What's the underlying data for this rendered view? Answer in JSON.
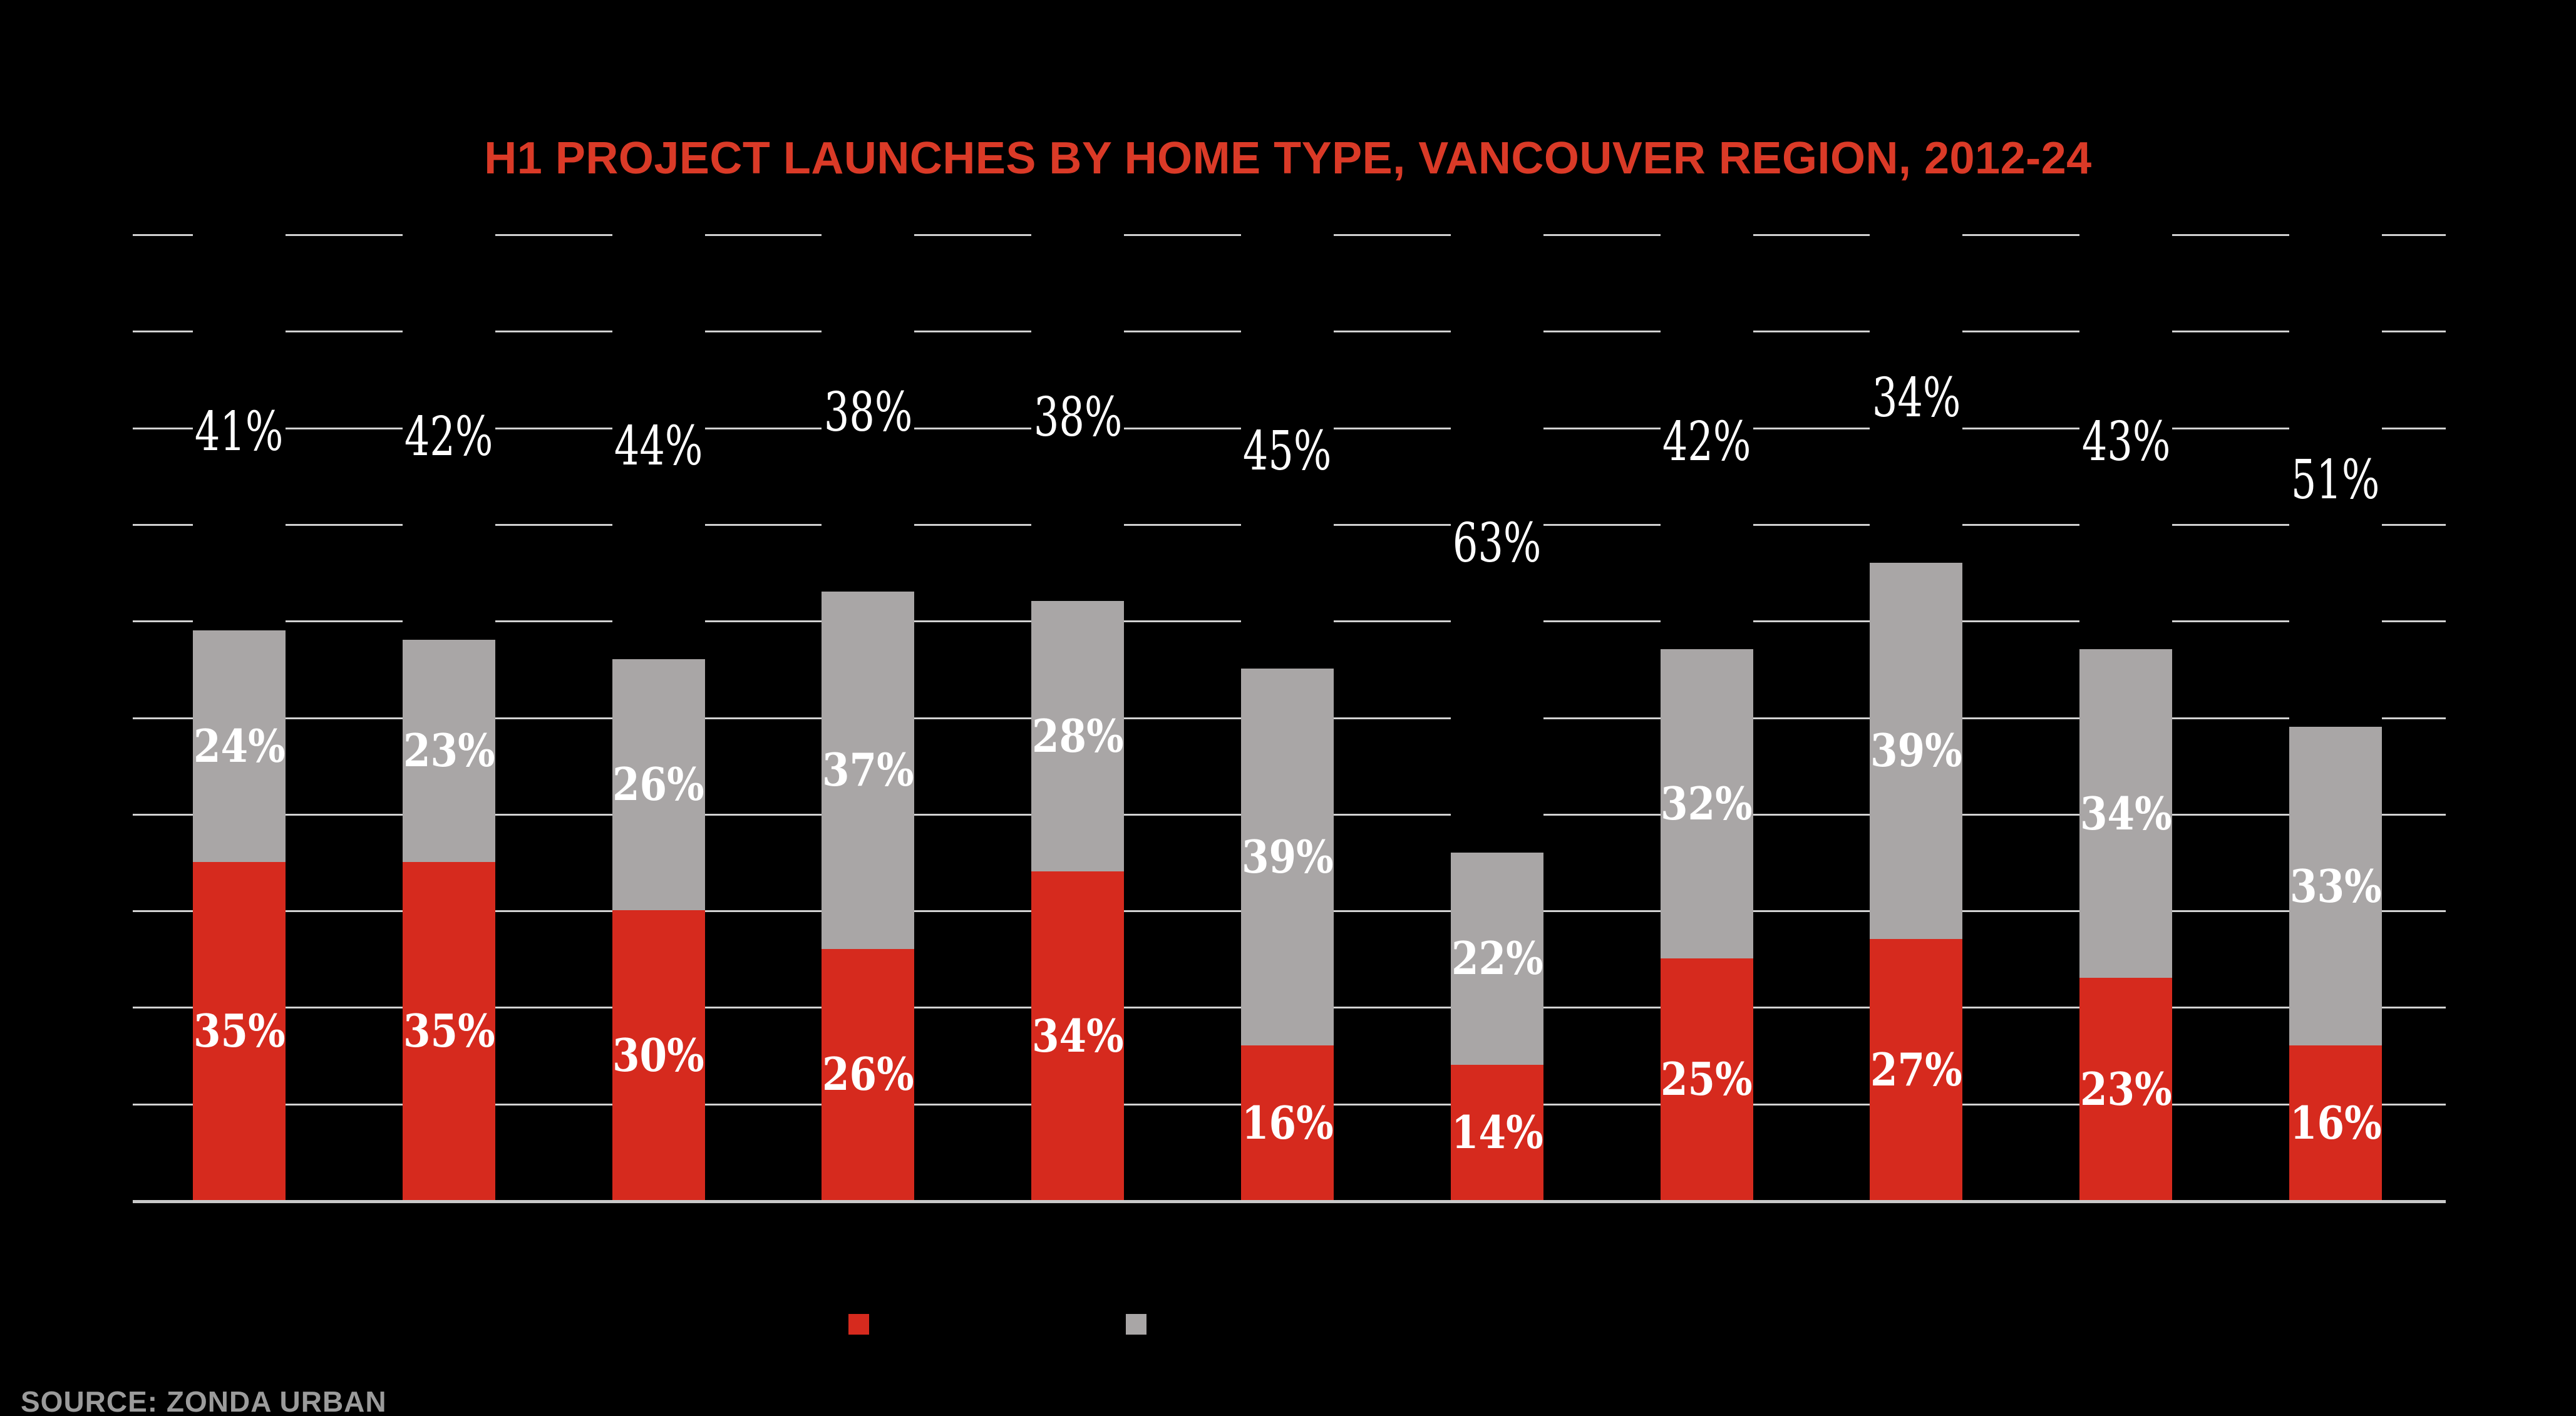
{
  "title": {
    "text": "H1 PROJECT LAUNCHES BY HOME TYPE, VANCOUVER REGION, 2012-24",
    "color": "#da3a27"
  },
  "source": {
    "text": "SOURCE: ZONDA URBAN",
    "color": "#9b9b9b"
  },
  "legend": {
    "items": [
      {
        "name": "red-series-swatch",
        "color": "#d62a1e"
      },
      {
        "name": "gray-series-swatch",
        "color": "#a9a6a6"
      }
    ]
  },
  "chart_data": {
    "type": "bar",
    "variant": "stacked-100pct-column",
    "title": "H1 PROJECT LAUNCHES BY HOME TYPE, VANCOUVER REGION, 2012-24",
    "unit": "%",
    "x_tick_labels": [],
    "num_columns": 11,
    "ylim": [
      0,
      100
    ],
    "gridline_step_percent": 10,
    "grid_on": true,
    "background": "#000000",
    "gridline_color": "#d2d2d2",
    "baseline_color": "#c9c9c9",
    "label_color": "#ffffff",
    "series": [
      {
        "name": "red-bottom-segment",
        "color": "#d62a1e",
        "values": [
          35,
          35,
          30,
          26,
          34,
          16,
          14,
          25,
          27,
          23,
          16
        ]
      },
      {
        "name": "gray-middle-segment",
        "color": "#a9a6a6",
        "values": [
          24,
          23,
          26,
          37,
          28,
          39,
          22,
          32,
          39,
          34,
          33
        ]
      },
      {
        "name": "black-top-segment",
        "color": "#000000",
        "values": [
          41,
          42,
          44,
          38,
          38,
          45,
          63,
          42,
          34,
          43,
          51
        ]
      }
    ]
  }
}
